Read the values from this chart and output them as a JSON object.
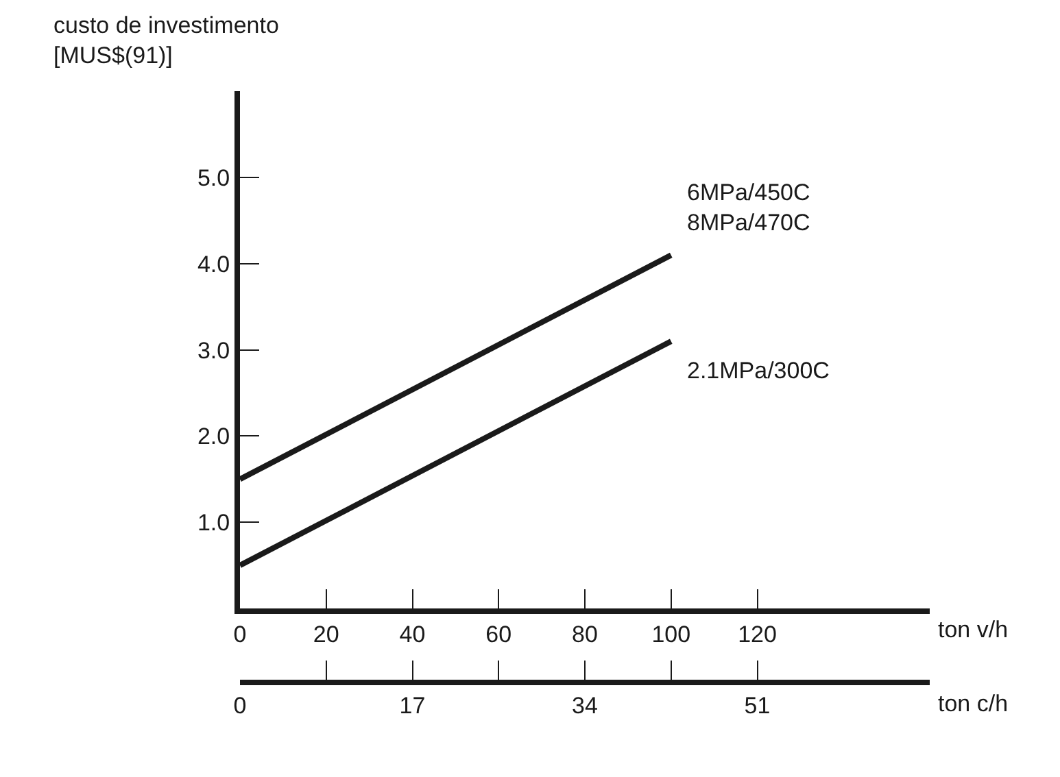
{
  "chart_data": {
    "type": "line",
    "ylabel": "custo de investimento\n[MUS$(91)]",
    "xlabel": "ton v/h",
    "x2label": "ton c/h",
    "xlim": [
      0,
      160
    ],
    "xticks": [
      0,
      20,
      40,
      60,
      80,
      100,
      120
    ],
    "x2lim": [
      0,
      68
    ],
    "x2ticks": [
      0,
      {
        "value": 8.5,
        "label": null
      },
      17,
      {
        "value": 25.5,
        "label": null
      },
      34,
      {
        "value": 42.5,
        "label": null
      },
      51
    ],
    "ylim": [
      0,
      6
    ],
    "yticks": [
      {
        "value": 1,
        "label": "1.0"
      },
      {
        "value": 2,
        "label": "2.0"
      },
      {
        "value": 3,
        "label": "3.0"
      },
      {
        "value": 4,
        "label": "4.0"
      },
      {
        "value": 5,
        "label": "5.0"
      }
    ],
    "x": [
      0,
      100
    ],
    "legend": false,
    "marker": "none",
    "line_style": "solid",
    "series": [
      {
        "name": "6MPa/450C\n8MPa/470C",
        "color": "#1a1a1a",
        "values": [
          1.5,
          4.1
        ]
      },
      {
        "name": "2.1MPa/300C",
        "color": "#1a1a1a",
        "values": [
          0.5,
          3.1
        ]
      }
    ]
  }
}
